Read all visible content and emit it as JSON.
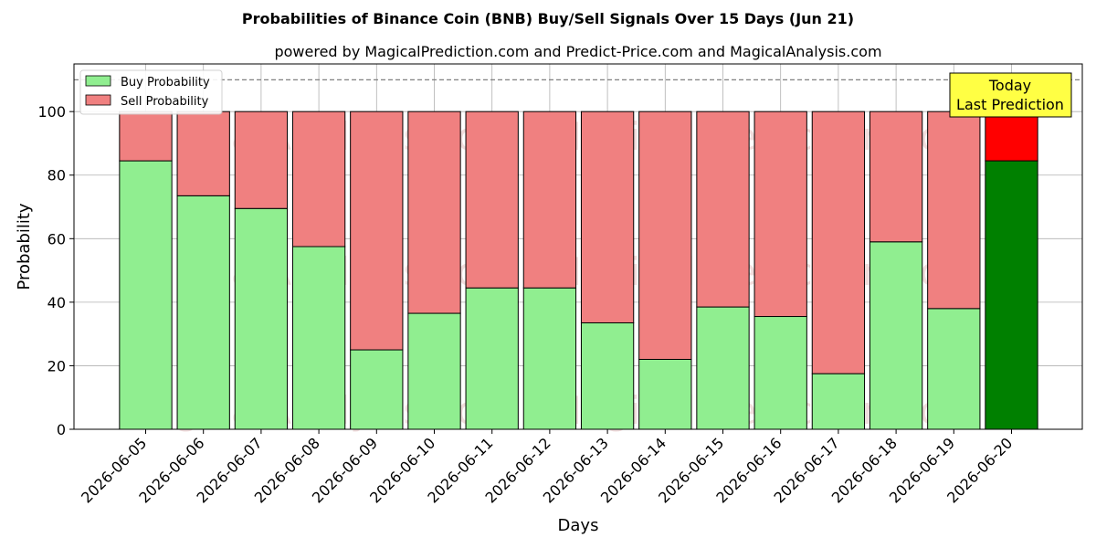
{
  "chart_data": {
    "type": "bar",
    "stacked": true,
    "title": "Probabilities of Binance Coin (BNB) Buy/Sell Signals Over 15 Days (Jun 21)",
    "subtitle": "powered by MagicalPrediction.com and Predict-Price.com and MagicalAnalysis.com",
    "xlabel": "Days",
    "ylabel": "Probability",
    "ylim": [
      0,
      115
    ],
    "yticks": [
      0,
      20,
      40,
      60,
      80,
      100
    ],
    "reference_line": 110,
    "grid": true,
    "legend_position": "top-left",
    "categories": [
      "2026-06-05",
      "2026-06-06",
      "2026-06-07",
      "2026-06-08",
      "2026-06-09",
      "2026-06-10",
      "2026-06-11",
      "2026-06-12",
      "2026-06-13",
      "2026-06-14",
      "2026-06-15",
      "2026-06-16",
      "2026-06-17",
      "2026-06-18",
      "2026-06-19",
      "2026-06-20"
    ],
    "series": [
      {
        "name": "Buy Probability",
        "color": "#90ee90",
        "highlight_color": "#008000",
        "values": [
          84.5,
          73.5,
          69.5,
          57.5,
          25,
          36.5,
          44.5,
          44.5,
          33.5,
          22,
          38.5,
          35.5,
          17.5,
          59,
          38,
          84.5
        ]
      },
      {
        "name": "Sell Probability",
        "color": "#f08080",
        "highlight_color": "#ff0000",
        "values": [
          15.5,
          26.5,
          30.5,
          42.5,
          75,
          63.5,
          55.5,
          55.5,
          66.5,
          78,
          61.5,
          64.5,
          82.5,
          41,
          62,
          15.5
        ]
      }
    ],
    "highlight_index": 15,
    "annotation": {
      "lines": [
        "Today",
        "Last Prediction"
      ],
      "color": "#ffff44"
    },
    "watermarks": [
      "MagicalAnalysis.com",
      "MagicalPrediction.com"
    ]
  }
}
